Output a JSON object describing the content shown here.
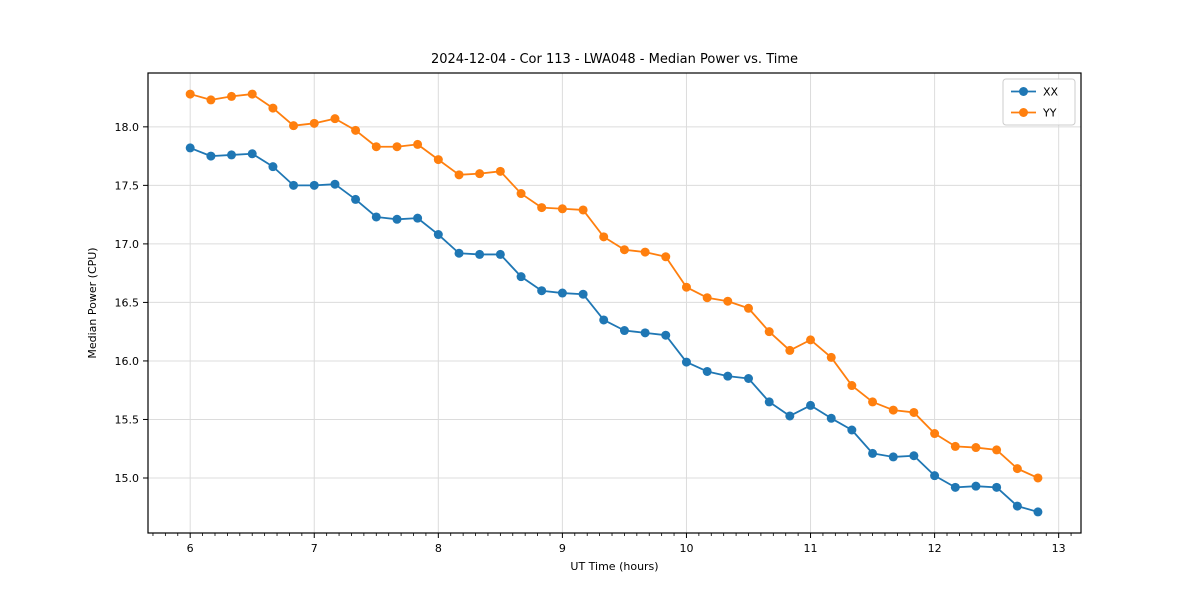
{
  "figure": {
    "background": "#ffffff"
  },
  "chart_data": {
    "type": "line",
    "title": "2024-12-04 - Cor 113 - LWA048 - Median Power vs. Time",
    "xlabel": "UT Time (hours)",
    "ylabel": "Median Power (CPU)",
    "xlim": [
      5.66,
      13.18
    ],
    "ylim": [
      14.53,
      18.46
    ],
    "x_major_ticks": [
      6,
      7,
      8,
      9,
      10,
      11,
      12,
      13
    ],
    "x_tick_labels": [
      "6",
      "7",
      "8",
      "9",
      "10",
      "11",
      "12",
      "13"
    ],
    "x_minor_step": 0.1,
    "y_major_ticks": [
      15.0,
      15.5,
      16.0,
      16.5,
      17.0,
      17.5,
      18.0
    ],
    "y_tick_labels": [
      "15.0",
      "15.5",
      "16.0",
      "16.5",
      "17.0",
      "17.5",
      "18.0"
    ],
    "grid": true,
    "grid_color": "#dcdcdc",
    "spine_color": "#000000",
    "legend_position": "upper right",
    "x": [
      6.0,
      6.167,
      6.333,
      6.5,
      6.667,
      6.833,
      7.0,
      7.167,
      7.333,
      7.5,
      7.667,
      7.833,
      8.0,
      8.167,
      8.333,
      8.5,
      8.667,
      8.833,
      9.0,
      9.167,
      9.333,
      9.5,
      9.667,
      9.833,
      10.0,
      10.167,
      10.333,
      10.5,
      10.667,
      10.833,
      11.0,
      11.167,
      11.333,
      11.5,
      11.667,
      11.833,
      12.0,
      12.167,
      12.333,
      12.5,
      12.667,
      12.833
    ],
    "series": [
      {
        "name": "XX",
        "color": "#1f77b4",
        "values": [
          17.82,
          17.75,
          17.76,
          17.77,
          17.66,
          17.5,
          17.5,
          17.51,
          17.38,
          17.23,
          17.21,
          17.22,
          17.08,
          16.92,
          16.91,
          16.91,
          16.72,
          16.6,
          16.58,
          16.57,
          16.35,
          16.26,
          16.24,
          16.22,
          15.99,
          15.91,
          15.87,
          15.85,
          15.65,
          15.53,
          15.62,
          15.51,
          15.41,
          15.21,
          15.18,
          15.19,
          15.02,
          14.92,
          14.93,
          14.92,
          14.76,
          14.71
        ]
      },
      {
        "name": "YY",
        "color": "#ff7f0e",
        "values": [
          18.28,
          18.23,
          18.26,
          18.28,
          18.16,
          18.01,
          18.03,
          18.07,
          17.97,
          17.83,
          17.83,
          17.85,
          17.72,
          17.59,
          17.6,
          17.62,
          17.43,
          17.31,
          17.3,
          17.29,
          17.06,
          16.95,
          16.93,
          16.89,
          16.63,
          16.54,
          16.51,
          16.45,
          16.25,
          16.09,
          16.18,
          16.03,
          15.79,
          15.65,
          15.58,
          15.56,
          15.38,
          15.27,
          15.26,
          15.24,
          15.08,
          15.0
        ]
      }
    ]
  }
}
